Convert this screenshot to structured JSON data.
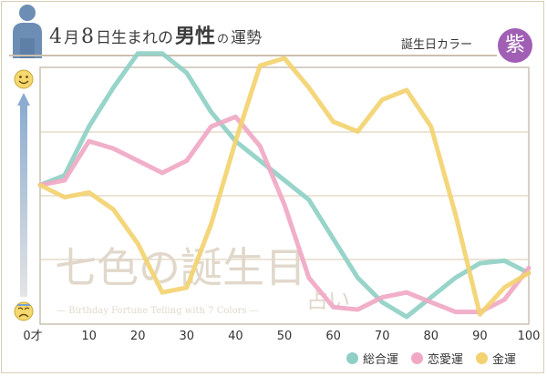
{
  "header": {
    "month": "4",
    "month_unit": "月",
    "day": "8",
    "day_suffix": "日生まれの",
    "gender": "男性",
    "particle": "の",
    "topic": "運勢",
    "color_label": "誕生日カラー",
    "color_name": "紫",
    "color_hex": "#a05fb4"
  },
  "watermark": {
    "main": "七色の誕生日",
    "sub": "占い",
    "caption": "— Birthday Fortune Telling with 7 Colors —"
  },
  "scale_icons": {
    "top": "smiley-face-icon",
    "bottom": "sad-face-icon"
  },
  "chart_data": {
    "type": "line",
    "x_tick_labels": [
      "0才",
      "10",
      "20",
      "30",
      "40",
      "50",
      "60",
      "70",
      "80",
      "90",
      "100"
    ],
    "xlim": [
      0,
      100
    ],
    "ylim": [
      0,
      100
    ],
    "grid": true,
    "legend_position": "bottom-right",
    "series": [
      {
        "name": "総合運",
        "color": "#8fd0c4",
        "x": [
          0,
          5,
          10,
          15,
          20,
          25,
          30,
          35,
          40,
          45,
          50,
          55,
          60,
          65,
          70,
          75,
          80,
          85,
          90,
          95,
          100
        ],
        "y": [
          54,
          58,
          78,
          94,
          108,
          108,
          100,
          84,
          72,
          64,
          56,
          48,
          32,
          16,
          6,
          0,
          8,
          16,
          22,
          23,
          18
        ]
      },
      {
        "name": "恋愛運",
        "color": "#f0a8c4",
        "x": [
          0,
          5,
          10,
          15,
          20,
          25,
          30,
          35,
          40,
          45,
          50,
          55,
          60,
          65,
          70,
          75,
          80,
          85,
          90,
          95,
          100
        ],
        "y": [
          54,
          56,
          72,
          69,
          64,
          59,
          64,
          78,
          82,
          70,
          46,
          16,
          4,
          3,
          8,
          10,
          6,
          2,
          2,
          7,
          20
        ]
      },
      {
        "name": "金運",
        "color": "#f3d270",
        "x": [
          0,
          5,
          10,
          15,
          20,
          25,
          30,
          35,
          40,
          45,
          50,
          55,
          60,
          65,
          70,
          75,
          80,
          85,
          90,
          95,
          100
        ],
        "y": [
          54,
          49,
          51,
          44,
          30,
          10,
          12,
          38,
          72,
          103,
          106,
          94,
          80,
          76,
          89,
          93,
          78,
          42,
          1,
          12,
          18
        ]
      }
    ]
  }
}
